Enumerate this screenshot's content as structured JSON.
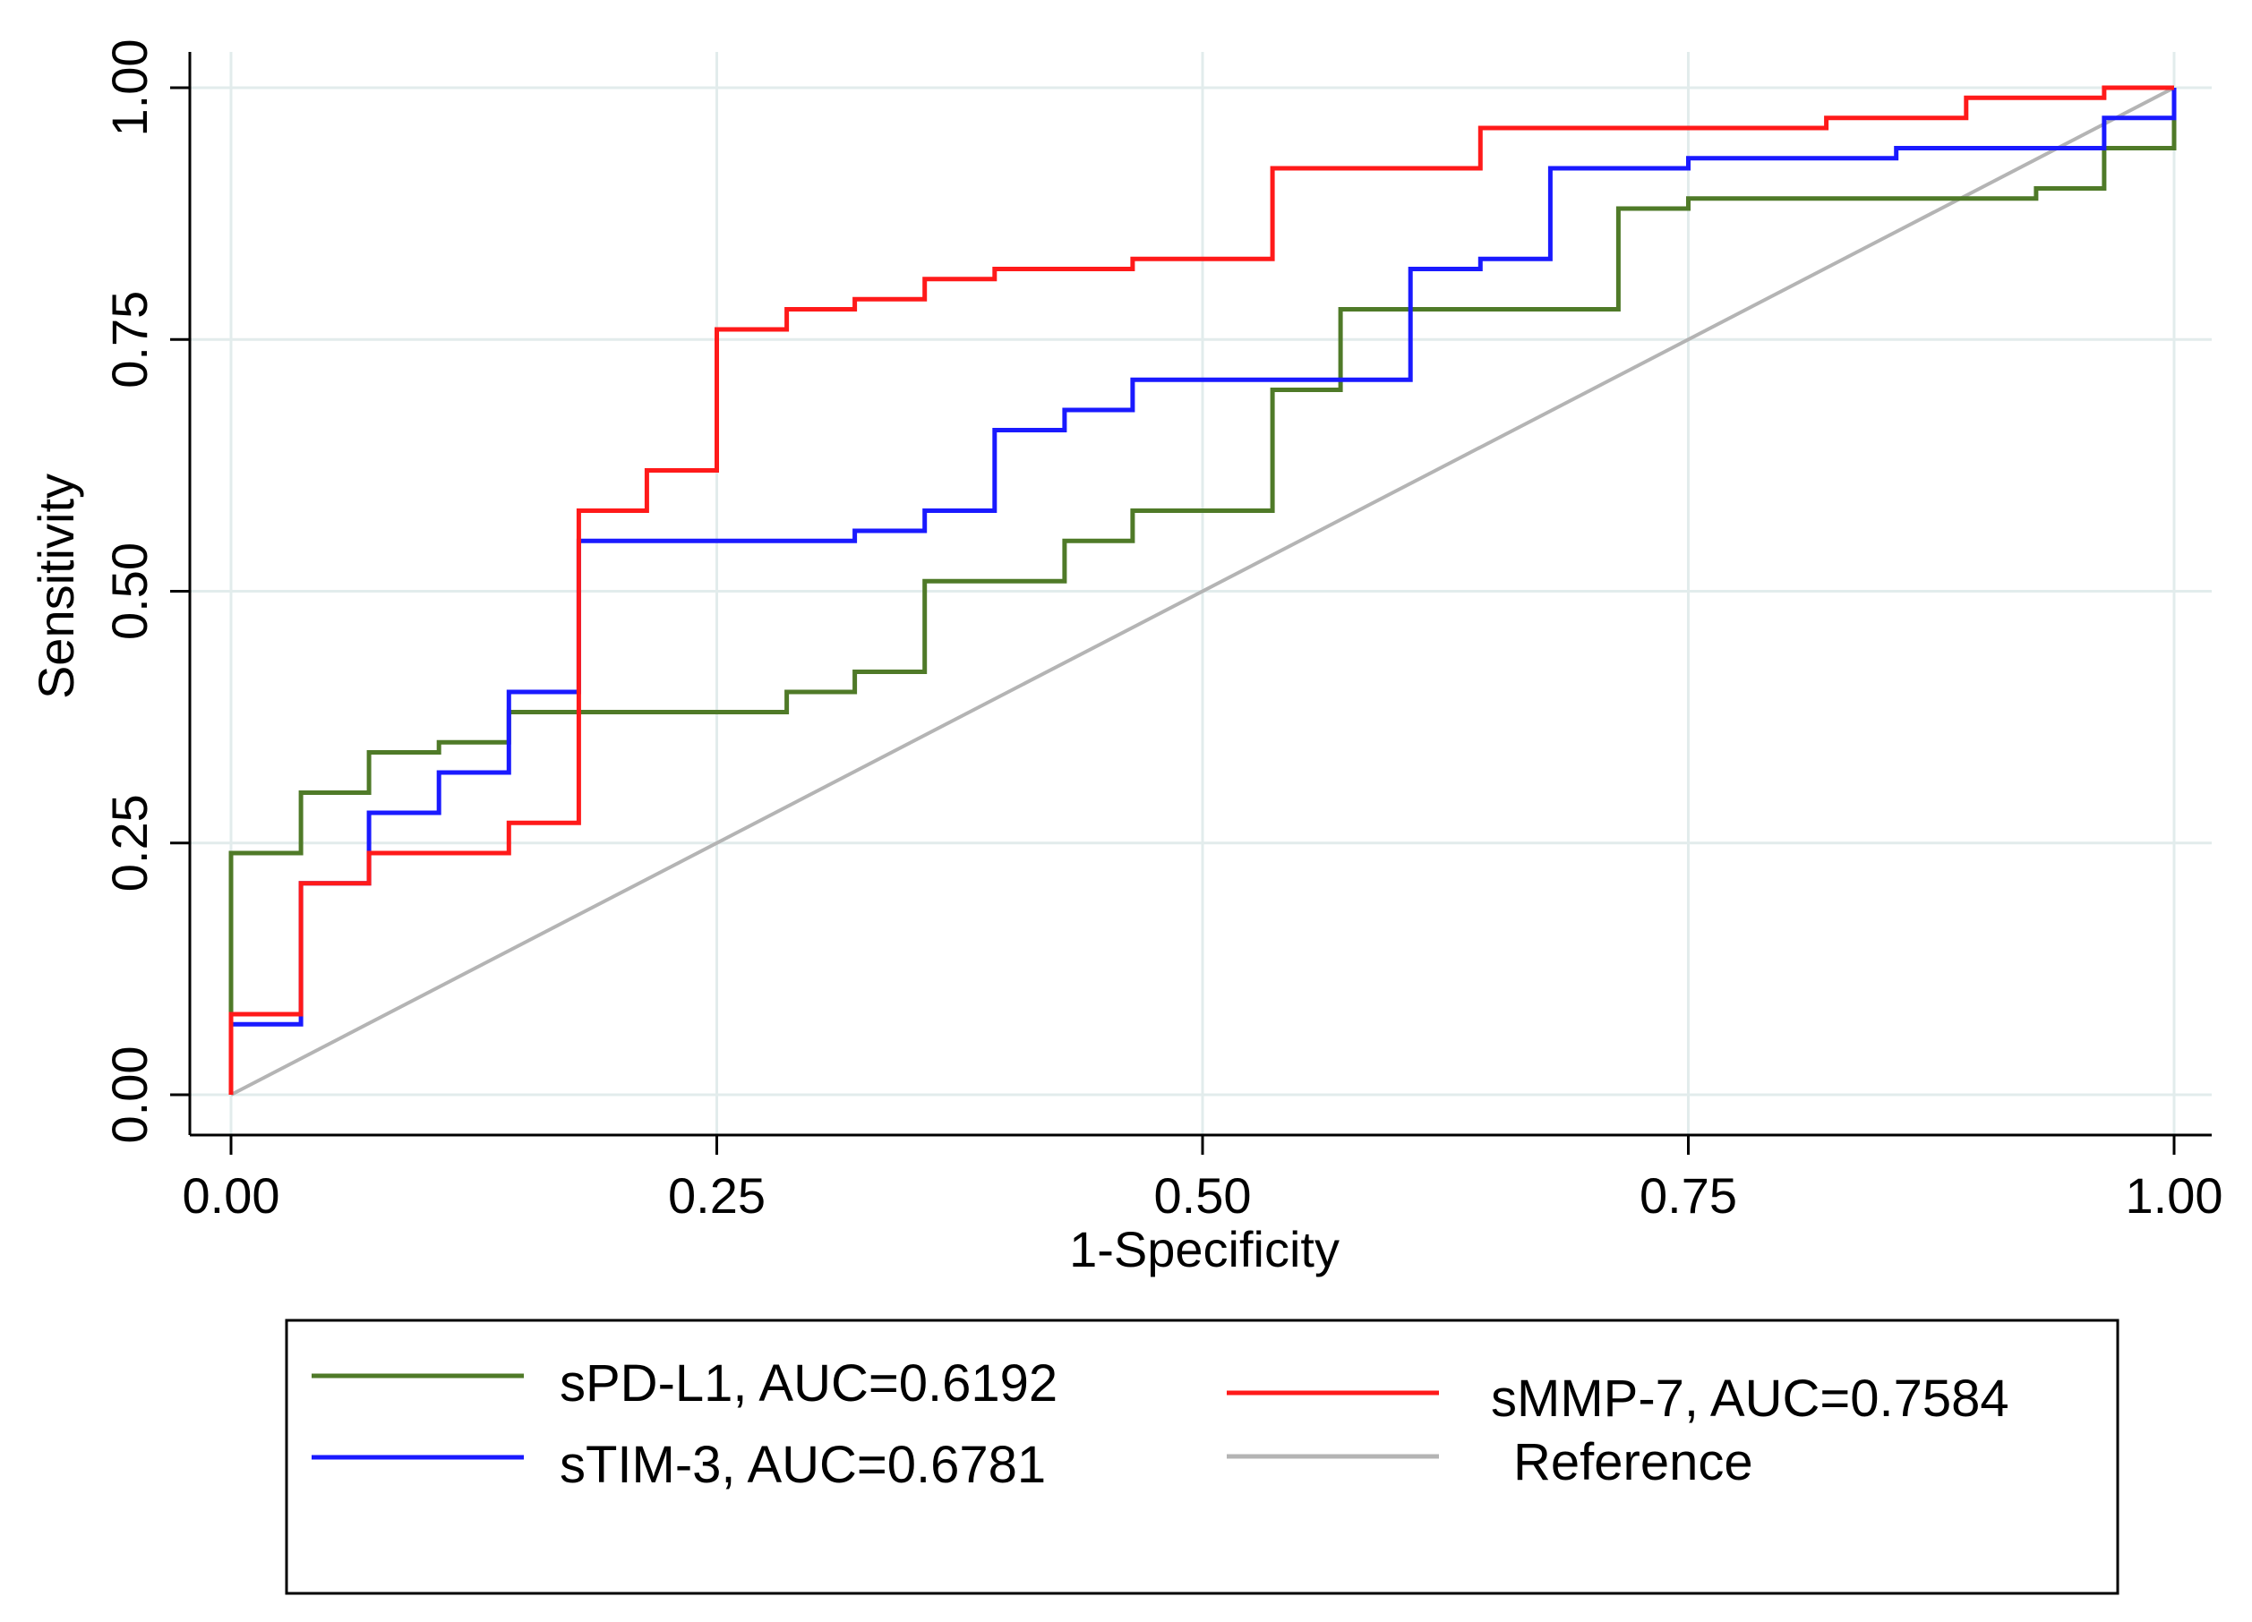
{
  "chart_data": {
    "type": "line",
    "title": "",
    "xlabel": "1-Specificity",
    "ylabel": "Sensitivity",
    "xlim": [
      0,
      1
    ],
    "ylim": [
      0,
      1
    ],
    "grid": true,
    "x_ticks": [
      "0.00",
      "0.25",
      "0.50",
      "0.75",
      "1.00"
    ],
    "y_ticks": [
      "0.00",
      "0.25",
      "0.50",
      "0.75",
      "1.00"
    ],
    "legend_position": "bottom",
    "series": [
      {
        "name": "sPD-L1",
        "label": "sPD-L1, AUC=0.6192",
        "auc": 0.6192,
        "color": "#4f7a28",
        "step": true,
        "points": [
          [
            0,
            0
          ],
          [
            0,
            0.24
          ],
          [
            0.036,
            0.24
          ],
          [
            0.036,
            0.3
          ],
          [
            0.071,
            0.3
          ],
          [
            0.071,
            0.34
          ],
          [
            0.107,
            0.34
          ],
          [
            0.107,
            0.35
          ],
          [
            0.143,
            0.35
          ],
          [
            0.143,
            0.38
          ],
          [
            0.286,
            0.38
          ],
          [
            0.286,
            0.4
          ],
          [
            0.321,
            0.4
          ],
          [
            0.321,
            0.42
          ],
          [
            0.357,
            0.42
          ],
          [
            0.357,
            0.51
          ],
          [
            0.429,
            0.51
          ],
          [
            0.429,
            0.55
          ],
          [
            0.464,
            0.55
          ],
          [
            0.464,
            0.58
          ],
          [
            0.536,
            0.58
          ],
          [
            0.536,
            0.7
          ],
          [
            0.571,
            0.7
          ],
          [
            0.571,
            0.78
          ],
          [
            0.714,
            0.78
          ],
          [
            0.714,
            0.88
          ],
          [
            0.75,
            0.88
          ],
          [
            0.75,
            0.89
          ],
          [
            0.929,
            0.89
          ],
          [
            0.929,
            0.9
          ],
          [
            0.964,
            0.9
          ],
          [
            0.964,
            0.94
          ],
          [
            1.0,
            0.94
          ],
          [
            1.0,
            1.0
          ]
        ]
      },
      {
        "name": "sTIM-3",
        "label": "sTIM-3, AUC=0.6781",
        "auc": 0.6781,
        "color": "#1a1aff",
        "step": true,
        "points": [
          [
            0,
            0
          ],
          [
            0,
            0.07
          ],
          [
            0.036,
            0.07
          ],
          [
            0.036,
            0.21
          ],
          [
            0.071,
            0.21
          ],
          [
            0.071,
            0.28
          ],
          [
            0.107,
            0.28
          ],
          [
            0.107,
            0.32
          ],
          [
            0.143,
            0.32
          ],
          [
            0.143,
            0.4
          ],
          [
            0.179,
            0.4
          ],
          [
            0.179,
            0.55
          ],
          [
            0.321,
            0.55
          ],
          [
            0.321,
            0.56
          ],
          [
            0.357,
            0.56
          ],
          [
            0.357,
            0.58
          ],
          [
            0.393,
            0.58
          ],
          [
            0.393,
            0.66
          ],
          [
            0.429,
            0.66
          ],
          [
            0.429,
            0.68
          ],
          [
            0.464,
            0.68
          ],
          [
            0.464,
            0.71
          ],
          [
            0.607,
            0.71
          ],
          [
            0.607,
            0.82
          ],
          [
            0.643,
            0.82
          ],
          [
            0.643,
            0.83
          ],
          [
            0.679,
            0.83
          ],
          [
            0.679,
            0.92
          ],
          [
            0.75,
            0.92
          ],
          [
            0.75,
            0.93
          ],
          [
            0.857,
            0.93
          ],
          [
            0.857,
            0.94
          ],
          [
            0.964,
            0.94
          ],
          [
            0.964,
            0.97
          ],
          [
            1.0,
            0.97
          ],
          [
            1.0,
            1.0
          ]
        ]
      },
      {
        "name": "sMMP-7",
        "label": "sMMP-7, AUC=0.7584",
        "auc": 0.7584,
        "color": "#ff1a1a",
        "step": true,
        "points": [
          [
            0,
            0
          ],
          [
            0,
            0.08
          ],
          [
            0.036,
            0.08
          ],
          [
            0.036,
            0.21
          ],
          [
            0.071,
            0.21
          ],
          [
            0.071,
            0.24
          ],
          [
            0.143,
            0.24
          ],
          [
            0.143,
            0.27
          ],
          [
            0.179,
            0.27
          ],
          [
            0.179,
            0.58
          ],
          [
            0.214,
            0.58
          ],
          [
            0.214,
            0.62
          ],
          [
            0.25,
            0.62
          ],
          [
            0.25,
            0.76
          ],
          [
            0.286,
            0.76
          ],
          [
            0.286,
            0.78
          ],
          [
            0.321,
            0.78
          ],
          [
            0.321,
            0.79
          ],
          [
            0.357,
            0.79
          ],
          [
            0.357,
            0.81
          ],
          [
            0.393,
            0.81
          ],
          [
            0.393,
            0.82
          ],
          [
            0.464,
            0.82
          ],
          [
            0.464,
            0.83
          ],
          [
            0.536,
            0.83
          ],
          [
            0.536,
            0.92
          ],
          [
            0.643,
            0.92
          ],
          [
            0.643,
            0.96
          ],
          [
            0.821,
            0.96
          ],
          [
            0.821,
            0.97
          ],
          [
            0.893,
            0.97
          ],
          [
            0.893,
            0.99
          ],
          [
            0.964,
            0.99
          ],
          [
            0.964,
            1.0
          ],
          [
            1.0,
            1.0
          ]
        ]
      },
      {
        "name": "Reference",
        "label": "Reference",
        "color": "#b4b4b4",
        "step": false,
        "points": [
          [
            0,
            0
          ],
          [
            1,
            1
          ]
        ]
      }
    ]
  }
}
